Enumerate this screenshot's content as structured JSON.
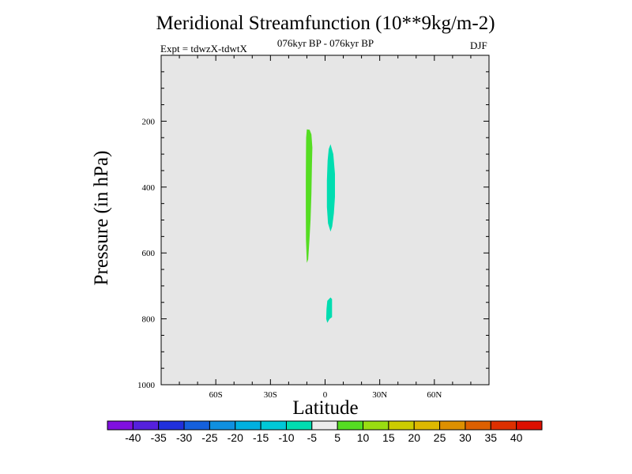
{
  "chart_data": {
    "type": "heatmap",
    "title": "Meridional Streamfunction (10**9kg/m-2)",
    "subtitle": "076kyr BP - 076kyr BP",
    "left_note": "Expt = tdwzX-tdwtX",
    "right_note": "DJF",
    "xlabel": "Latitude",
    "ylabel": "Pressure (in hPa)",
    "xlim": [
      -90,
      90
    ],
    "ylim": [
      1000,
      0
    ],
    "x_ticks": [
      {
        "value": -60,
        "label": "60S"
      },
      {
        "value": -30,
        "label": "30S"
      },
      {
        "value": 0,
        "label": "0"
      },
      {
        "value": 30,
        "label": "30N"
      },
      {
        "value": 60,
        "label": "60N"
      }
    ],
    "y_ticks": [
      {
        "value": 200,
        "label": "200"
      },
      {
        "value": 400,
        "label": "400"
      },
      {
        "value": 600,
        "label": "600"
      },
      {
        "value": 800,
        "label": "800"
      },
      {
        "value": 1000,
        "label": "1000"
      }
    ],
    "background_color": "#e6e6e6",
    "regions": [
      {
        "level": "5 to 10",
        "color": "#55dd22",
        "outline": [
          [
            -10,
            225
          ],
          [
            -8.5,
            226
          ],
          [
            -7.5,
            240
          ],
          [
            -7,
            280
          ],
          [
            -7.2,
            330
          ],
          [
            -7.5,
            420
          ],
          [
            -8,
            500
          ],
          [
            -8.6,
            560
          ],
          [
            -9.3,
            620
          ],
          [
            -10,
            630
          ],
          [
            -10.5,
            560
          ],
          [
            -10.6,
            470
          ],
          [
            -10.6,
            380
          ],
          [
            -10.5,
            300
          ],
          [
            -10.4,
            250
          ]
        ]
      },
      {
        "level": "-10 to -5",
        "color": "#00ddb0",
        "outline": [
          [
            3,
            270
          ],
          [
            4.5,
            300
          ],
          [
            5.4,
            360
          ],
          [
            5.4,
            430
          ],
          [
            4.8,
            480
          ],
          [
            3.9,
            520
          ],
          [
            3,
            535
          ],
          [
            1.6,
            510
          ],
          [
            1,
            460
          ],
          [
            1,
            380
          ],
          [
            1.4,
            320
          ],
          [
            2,
            285
          ]
        ]
      },
      {
        "level": "-10 to -5",
        "color": "#00ddb0",
        "outline": [
          [
            1.2,
            745
          ],
          [
            3,
            735
          ],
          [
            3.8,
            740
          ],
          [
            3.8,
            795
          ],
          [
            2.5,
            800
          ],
          [
            1.2,
            812
          ],
          [
            0.6,
            800
          ],
          [
            0.8,
            770
          ]
        ]
      }
    ],
    "colorbar": {
      "labels": [
        "-40",
        "-35",
        "-30",
        "-25",
        "-20",
        "-15",
        "-10",
        "-5",
        "5",
        "10",
        "15",
        "20",
        "25",
        "30",
        "35",
        "40"
      ],
      "colors": [
        "#8010e0",
        "#5520dd",
        "#2030dd",
        "#1560dd",
        "#1090e0",
        "#00b0e0",
        "#00c8d8",
        "#00ddb0",
        "#ececec",
        "#55dd22",
        "#99dd11",
        "#cccc00",
        "#ddb800",
        "#dd9000",
        "#dd6000",
        "#dd3000",
        "#dd1000"
      ]
    }
  }
}
